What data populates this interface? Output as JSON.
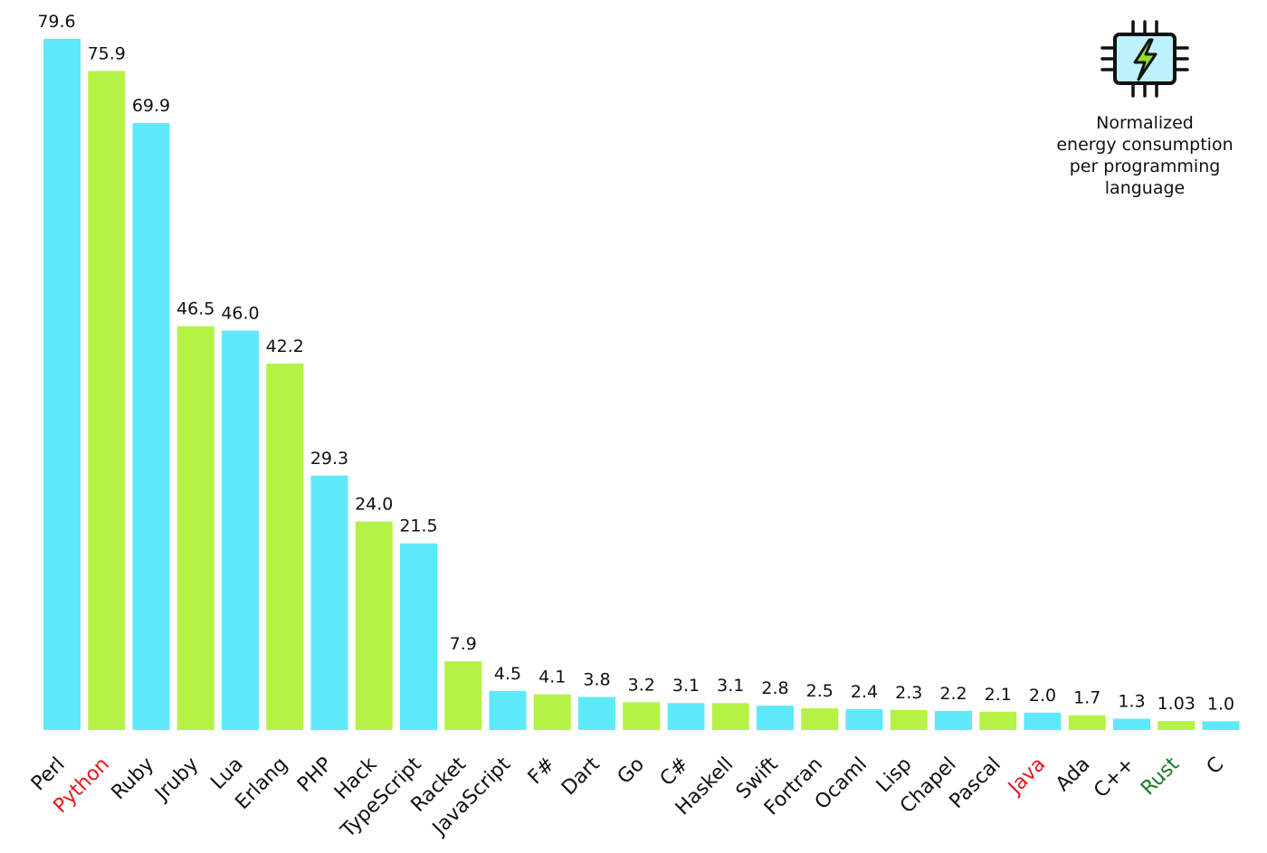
{
  "legend": {
    "icon": "chip-lightning-icon",
    "text": "Normalized\nenergy consumption\nper programming\nlanguage"
  },
  "colors": {
    "cyan": "#5ee9fb",
    "green": "#b5f246",
    "label_default": "#111111",
    "label_red": "#e3181d",
    "label_green": "#1a7a2a"
  },
  "chart_data": {
    "type": "bar",
    "categories": [
      "Perl",
      "Python",
      "Ruby",
      "Jruby",
      "Lua",
      "Erlang",
      "PHP",
      "Hack",
      "TypeScript",
      "Racket",
      "JavaScript",
      "F#",
      "Dart",
      "Go",
      "C#",
      "Haskell",
      "Swift",
      "Fortran",
      "Ocaml",
      "Lisp",
      "Chapel",
      "Pascal",
      "Java",
      "Ada",
      "C++",
      "Rust",
      "C"
    ],
    "values": [
      79.6,
      75.9,
      69.9,
      46.5,
      46.0,
      42.2,
      29.3,
      24.0,
      21.5,
      7.9,
      4.5,
      4.1,
      3.8,
      3.2,
      3.1,
      3.1,
      2.8,
      2.5,
      2.4,
      2.3,
      2.2,
      2.1,
      2.0,
      1.7,
      1.3,
      1.03,
      1.0
    ],
    "value_labels": [
      "79.6",
      "75.9",
      "69.9",
      "46.5",
      "46.0",
      "42.2",
      "29.3",
      "24.0",
      "21.5",
      "7.9",
      "4.5",
      "4.1",
      "3.8",
      "3.2",
      "3.1",
      "3.1",
      "2.8",
      "2.5",
      "2.4",
      "2.3",
      "2.2",
      "2.1",
      "2.0",
      "1.7",
      "1.3",
      "1.03",
      "1.0"
    ],
    "bar_colors": [
      "cyan",
      "green",
      "cyan",
      "green",
      "cyan",
      "green",
      "cyan",
      "green",
      "cyan",
      "green",
      "cyan",
      "green",
      "cyan",
      "green",
      "cyan",
      "green",
      "cyan",
      "green",
      "cyan",
      "green",
      "cyan",
      "green",
      "cyan",
      "green",
      "cyan",
      "green",
      "cyan"
    ],
    "label_colors": [
      "default",
      "red",
      "default",
      "default",
      "default",
      "default",
      "default",
      "default",
      "default",
      "default",
      "default",
      "default",
      "default",
      "default",
      "default",
      "default",
      "default",
      "default",
      "default",
      "default",
      "default",
      "default",
      "red",
      "default",
      "default",
      "green",
      "default"
    ],
    "title": "",
    "xlabel": "",
    "ylabel": "",
    "ylim": [
      0,
      79.6
    ],
    "grid": false,
    "legend_position": "top-right"
  }
}
